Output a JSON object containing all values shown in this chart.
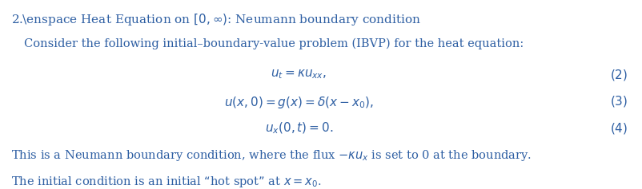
{
  "background_color": "#ffffff",
  "text_color": "#2E5FA3",
  "fig_width": 8.03,
  "fig_height": 2.37,
  "dpi": 100,
  "title_line": "2.\\enspace Heat Equation on $[0, \\infty)$: Neumann boundary condition",
  "intro_line": "Consider the following initial–boundary-value problem (IBVP) for the heat equation:",
  "eq1": "$u_t = \\kappa u_{xx},$",
  "eq2": "$u(x, 0) = g(x) = \\delta(x - x_0),$",
  "eq3": "$u_x(0, t) = 0.$",
  "num1": "$(2)$",
  "num2": "$(3)$",
  "num3": "$(4)$",
  "footer1": "This is a Neumann boundary condition, where the flux $-\\kappa u_x$ is set to 0 at the boundary.",
  "footer2": "The initial condition is an initial “hot spot” at $x = x_0$.",
  "title_fontsize": 11.0,
  "body_fontsize": 10.5,
  "eq_fontsize": 11.0
}
